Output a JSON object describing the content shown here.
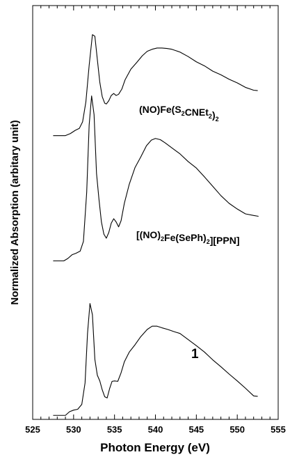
{
  "chart_data": {
    "type": "line",
    "xlabel": "Photon Energy (eV)",
    "ylabel": "Normalized Absorption (arbitary unit)",
    "xlim": [
      525,
      555
    ],
    "x_ticks": [
      525,
      530,
      535,
      540,
      545,
      550,
      555
    ],
    "x_tick_labels": [
      "525",
      "530",
      "535",
      "540",
      "545",
      "550",
      "555"
    ],
    "x_minor_step": 1,
    "y_ticks_labeled": false,
    "ylim": [
      0,
      1
    ],
    "series": [
      {
        "name": "(NO)Fe(S2CNEt2)2",
        "label_parts": [
          {
            "t": "(NO)Fe(S"
          },
          {
            "t": "2",
            "sub": true
          },
          {
            "t": "CNEt"
          },
          {
            "t": "2",
            "sub": true
          },
          {
            "t": ")"
          },
          {
            "t": "2",
            "sub": true
          }
        ],
        "x": [
          527.5,
          529.0,
          529.6,
          530.2,
          530.7,
          531.1,
          531.5,
          531.9,
          532.3,
          532.6,
          532.9,
          533.2,
          533.5,
          533.8,
          534.0,
          534.3,
          534.6,
          534.9,
          535.2,
          535.5,
          535.9,
          536.3,
          537.0,
          537.7,
          538.4,
          539.0,
          539.6,
          540.2,
          540.8,
          541.4,
          542.0,
          543.0,
          544.0,
          545.0,
          546.0,
          547.0,
          548.0,
          549.0,
          550.0,
          551.0,
          552.0,
          552.5
        ],
        "y": [
          0.693,
          0.693,
          0.698,
          0.706,
          0.711,
          0.727,
          0.776,
          0.866,
          0.942,
          0.938,
          0.881,
          0.825,
          0.789,
          0.773,
          0.771,
          0.779,
          0.792,
          0.797,
          0.792,
          0.795,
          0.808,
          0.831,
          0.857,
          0.873,
          0.89,
          0.901,
          0.906,
          0.909,
          0.909,
          0.908,
          0.906,
          0.899,
          0.888,
          0.875,
          0.865,
          0.852,
          0.843,
          0.832,
          0.823,
          0.812,
          0.805,
          0.804
        ]
      },
      {
        "name": "[(NO)2Fe(SePh)2][PPN]",
        "label_parts": [
          {
            "t": "[(NO)"
          },
          {
            "t": "2",
            "sub": true
          },
          {
            "t": "Fe(SePh)"
          },
          {
            "t": "2",
            "sub": true
          },
          {
            "t": "][PPN]"
          }
        ],
        "x": [
          527.5,
          528.8,
          529.3,
          529.8,
          530.3,
          530.8,
          531.2,
          531.6,
          531.9,
          532.2,
          532.5,
          532.8,
          533.1,
          533.4,
          533.7,
          534.0,
          534.3,
          534.6,
          534.9,
          535.2,
          535.5,
          535.8,
          536.2,
          536.8,
          537.5,
          538.2,
          538.9,
          539.5,
          540.0,
          540.6,
          541.2,
          542.0,
          543.0,
          544.0,
          545.0,
          546.0,
          547.0,
          548.0,
          549.0,
          550.0,
          551.0,
          552.0,
          552.6
        ],
        "y": [
          0.384,
          0.384,
          0.39,
          0.399,
          0.403,
          0.408,
          0.432,
          0.553,
          0.719,
          0.791,
          0.745,
          0.6,
          0.536,
          0.48,
          0.45,
          0.44,
          0.454,
          0.477,
          0.488,
          0.48,
          0.468,
          0.483,
          0.526,
          0.573,
          0.614,
          0.64,
          0.668,
          0.682,
          0.686,
          0.683,
          0.675,
          0.663,
          0.648,
          0.629,
          0.613,
          0.591,
          0.568,
          0.545,
          0.526,
          0.512,
          0.5,
          0.496,
          0.494
        ]
      },
      {
        "name": "1",
        "label_parts": [
          {
            "t": "1"
          }
        ],
        "x": [
          527.5,
          529.0,
          529.5,
          530.0,
          530.5,
          531.0,
          531.4,
          531.7,
          532.0,
          532.3,
          532.6,
          532.9,
          533.2,
          533.5,
          533.8,
          534.1,
          534.4,
          534.7,
          535.0,
          535.4,
          535.8,
          536.2,
          536.8,
          537.5,
          538.2,
          539.0,
          539.6,
          540.2,
          540.8,
          541.5,
          542.2,
          543.0,
          544.0,
          545.0,
          546.0,
          547.0,
          548.0,
          549.0,
          550.0,
          551.0,
          552.0,
          552.5
        ],
        "y": [
          0.003,
          0.003,
          0.012,
          0.016,
          0.018,
          0.03,
          0.083,
          0.205,
          0.279,
          0.251,
          0.141,
          0.102,
          0.088,
          0.066,
          0.049,
          0.046,
          0.069,
          0.087,
          0.088,
          0.087,
          0.108,
          0.135,
          0.159,
          0.177,
          0.197,
          0.215,
          0.223,
          0.223,
          0.219,
          0.215,
          0.21,
          0.205,
          0.19,
          0.175,
          0.159,
          0.14,
          0.123,
          0.105,
          0.088,
          0.07,
          0.051,
          0.05
        ]
      }
    ]
  }
}
